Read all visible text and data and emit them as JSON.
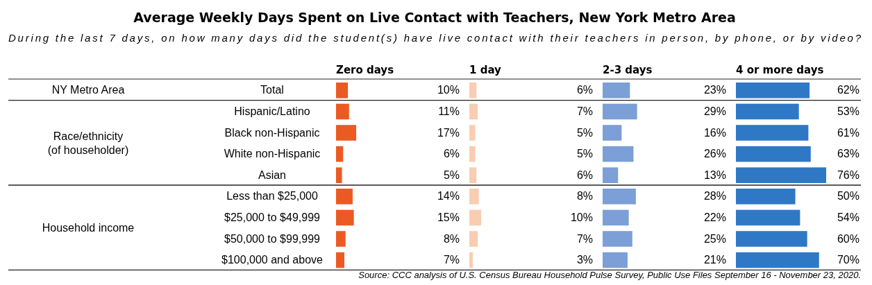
{
  "chart_data": [
    {
      "type": "other",
      "title": "Average Weekly Days Spent on Live Contact with Teachers, New York Metro Area",
      "subtitle": "During the last 7 days, on how many days did the student(s) have live contact with their teachers in person, by phone, or by video?",
      "annotations": [
        "NY Metro Area",
        "Race/ethnicity\n(of householder)",
        "Household income",
        "Source: CCC analysis of U.S. Census Bureau Household Pulse Survey, Public Use Files September 16 - November 23, 2020."
      ]
    },
    {
      "type": "bar",
      "orientation": "horizontal",
      "title": "Zero days",
      "tick_labels": "y",
      "color": "#ec5a24",
      "categories": [
        "Total",
        "Hispanic/Latino",
        "Black non-Hispanic",
        "White non-Hispanic",
        "Asian",
        "Less than $25,000",
        "$25,000 to $49,999",
        "$50,000 to $99,999",
        "$100,000 and above"
      ],
      "values": [
        10,
        11,
        17,
        6,
        5,
        14,
        15,
        8,
        7
      ],
      "value_labels": [
        "10%",
        "11%",
        "17%",
        "6%",
        "5%",
        "14%",
        "15%",
        "8%",
        "7%"
      ]
    },
    {
      "type": "bar",
      "orientation": "horizontal",
      "title": "1 day",
      "tick_labels": false,
      "color": "#f8cdb2",
      "values": [
        6,
        7,
        5,
        5,
        6,
        8,
        10,
        7,
        3
      ],
      "value_labels": [
        "6%",
        "7%",
        "5%",
        "5%",
        "6%",
        "8%",
        "10%",
        "7%",
        "3%"
      ]
    },
    {
      "type": "bar",
      "orientation": "horizontal",
      "title": "2-3 days",
      "tick_labels": false,
      "color": "#7b9fd6",
      "values": [
        23,
        29,
        16,
        26,
        13,
        28,
        22,
        25,
        21
      ],
      "value_labels": [
        "23%",
        "29%",
        "16%",
        "26%",
        "13%",
        "28%",
        "22%",
        "25%",
        "21%"
      ]
    },
    {
      "type": "bar",
      "orientation": "horizontal",
      "title": "4 or more days",
      "tick_labels": false,
      "color": "#2f78c6",
      "values": [
        62,
        53,
        61,
        63,
        76,
        50,
        54,
        60,
        70
      ],
      "value_labels": [
        "62%",
        "53%",
        "61%",
        "63%",
        "76%",
        "50%",
        "54%",
        "60%",
        "70%"
      ]
    }
  ]
}
